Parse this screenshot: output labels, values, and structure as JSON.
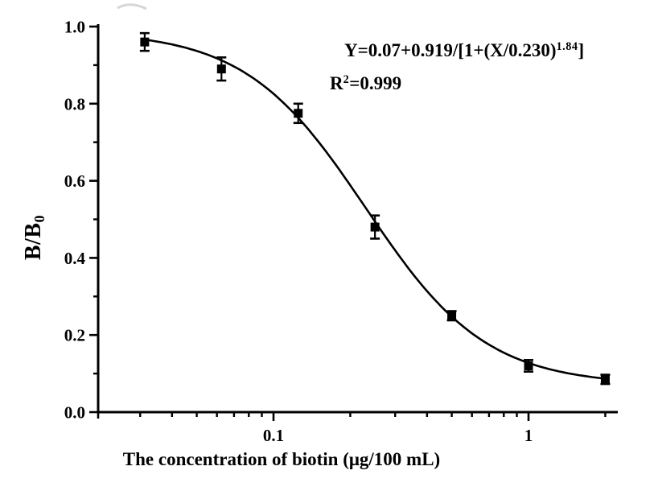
{
  "figure": {
    "background": "#ffffff",
    "ink_color": "#000000"
  },
  "equation": {
    "line1_main": "Y=0.07+0.919/[1+(X/0.230)",
    "line1_sup": "1.84",
    "line1_close": "]",
    "line2_base": "R",
    "line2_sup": "2",
    "line2_rest": "=0.999"
  },
  "axes": {
    "x_label": "The concentration of biotin (μg/100 mL)",
    "y_label_base": "B/B",
    "y_label_sub": "0"
  },
  "chart_data": {
    "type": "scatter",
    "title": "",
    "xlabel": "The concentration of biotin (μg/100 mL)",
    "ylabel": "B/B0",
    "xscale": "log",
    "grid": false,
    "legend": "none",
    "marker": "filled-square",
    "xlim": [
      0.0205,
      2.26
    ],
    "ylim": [
      0.0,
      1.01
    ],
    "x": [
      0.03125,
      0.0625,
      0.125,
      0.25,
      0.5,
      1,
      2
    ],
    "y": [
      0.96,
      0.89,
      0.775,
      0.48,
      0.25,
      0.12,
      0.085
    ],
    "y_err": [
      0.023,
      0.03,
      0.025,
      0.03,
      0.012,
      0.015,
      0.012
    ],
    "fit_curve": {
      "model": "four-parameter-logistic",
      "equation": "Y=0.07+0.919/[1+(X/0.230)^1.84]",
      "y0": 0.07,
      "a": 0.919,
      "x0": 0.23,
      "p": 1.84,
      "r_squared": 0.999,
      "x_range": [
        0.03125,
        2
      ]
    },
    "x_ticks_major": [
      {
        "value": 0.1,
        "label": "0.1"
      },
      {
        "value": 1,
        "label": "1"
      }
    ],
    "x_ticks_minor": [
      0.03,
      0.04,
      0.05,
      0.06,
      0.07,
      0.08,
      0.09,
      0.2,
      0.3,
      0.4,
      0.5,
      0.6,
      0.7,
      0.8,
      0.9,
      2
    ],
    "y_ticks_major": [
      {
        "value": 0.0,
        "label": "0.0"
      },
      {
        "value": 0.2,
        "label": "0.2"
      },
      {
        "value": 0.4,
        "label": "0.4"
      },
      {
        "value": 0.6,
        "label": "0.6"
      },
      {
        "value": 0.8,
        "label": "0.8"
      },
      {
        "value": 1.0,
        "label": "1.0"
      }
    ],
    "y_ticks_minor": [
      0.1,
      0.3,
      0.5,
      0.7,
      0.9
    ]
  }
}
